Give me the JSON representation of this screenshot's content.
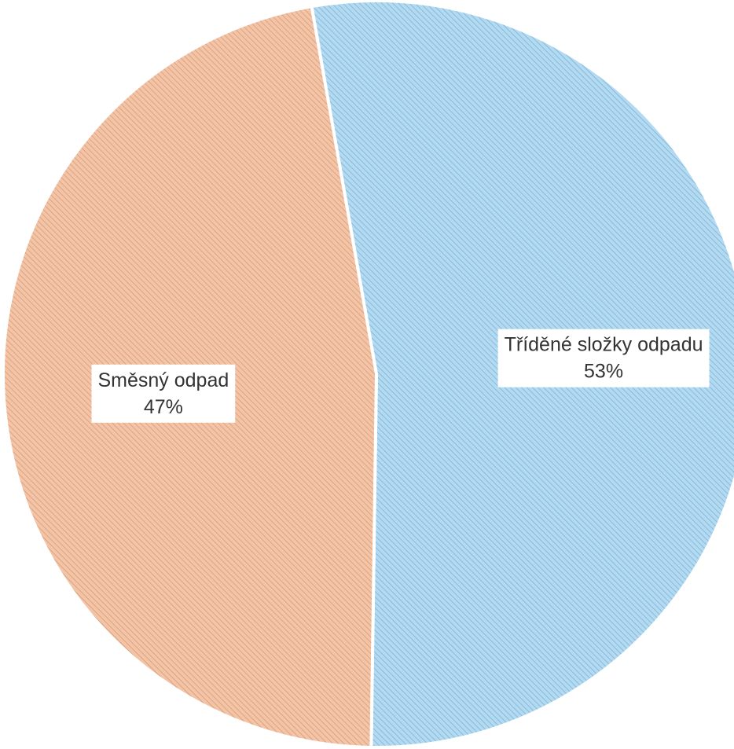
{
  "chart_data": {
    "type": "pie",
    "categories": [
      "Tříděné složky odpadu",
      "Směsný odpad"
    ],
    "values": [
      53,
      47
    ],
    "data_labels": [
      {
        "category": "Tříděné složky odpadu",
        "percent": "53%"
      },
      {
        "category": "Směsný odpad",
        "percent": "47%"
      }
    ],
    "colors": [
      "#b5d9ef",
      "#f3c5a6"
    ],
    "hatch_colors": [
      "#7fbde2",
      "#dba283"
    ],
    "separator_color": "#ffffff",
    "legend": "none",
    "title": ""
  }
}
